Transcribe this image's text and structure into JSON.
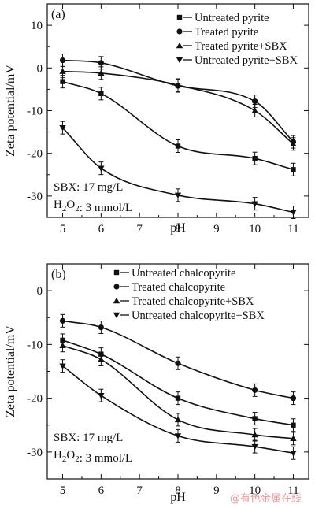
{
  "chart_data": [
    {
      "panel_label": "(a)",
      "type": "line",
      "xlabel": "pH",
      "ylabel": "Zeta potential/mV",
      "xlim": [
        4.6,
        11.4
      ],
      "ylim": [
        -35,
        15
      ],
      "x_ticks": [
        5,
        6,
        7,
        8,
        9,
        10,
        11
      ],
      "y_ticks": [
        -30,
        -20,
        -10,
        0,
        10
      ],
      "legend_position": "top-right",
      "annotation_lines": [
        "SBX: 17 mg/L",
        "H2O2: 3 mmol/L"
      ],
      "x": [
        5,
        6,
        8,
        10,
        11
      ],
      "series": [
        {
          "name": "Untreated pyrite",
          "marker": "square",
          "values": [
            -3.2,
            -6.0,
            -18.3,
            -21.2,
            -23.8
          ]
        },
        {
          "name": "Treated pyrite",
          "marker": "circle",
          "values": [
            1.8,
            1.2,
            -4.2,
            -7.8,
            -17.3
          ]
        },
        {
          "name": "Treated pyrite+SBX",
          "marker": "triangle-up",
          "values": [
            -0.8,
            -1.2,
            -4.0,
            -10.0,
            -17.8
          ]
        },
        {
          "name": "Untreated pyrite+SBX",
          "marker": "triangle-down",
          "values": [
            -14.0,
            -23.5,
            -29.8,
            -31.8,
            -33.8
          ]
        }
      ]
    },
    {
      "panel_label": "(b)",
      "type": "line",
      "xlabel": "pH",
      "ylabel": "Zeta potential/mV",
      "xlim": [
        4.6,
        11.4
      ],
      "ylim": [
        -35,
        5
      ],
      "x_ticks": [
        5,
        6,
        7,
        8,
        9,
        10,
        11
      ],
      "y_ticks": [
        -30,
        -20,
        -10,
        0
      ],
      "legend_position": "top-right",
      "annotation_lines": [
        "SBX: 17 mg/L",
        "H2O2: 3 mmol/L"
      ],
      "x": [
        5,
        6,
        8,
        10,
        11
      ],
      "series": [
        {
          "name": "Untreated chalcopyrite",
          "marker": "square",
          "values": [
            -9.2,
            -11.8,
            -20.0,
            -23.8,
            -25.0
          ]
        },
        {
          "name": "Treated chalcopyrite",
          "marker": "circle",
          "values": [
            -5.6,
            -6.8,
            -13.5,
            -18.5,
            -20.0
          ]
        },
        {
          "name": "Treated chalcopyrite+SBX",
          "marker": "triangle-up",
          "values": [
            -10.2,
            -12.8,
            -24.0,
            -26.8,
            -27.5
          ]
        },
        {
          "name": "Untreated chalcopyrite+SBX",
          "marker": "triangle-down",
          "values": [
            -14.0,
            -19.5,
            -27.0,
            -29.0,
            -30.2
          ]
        }
      ]
    }
  ],
  "watermark": "@有色金属在线"
}
